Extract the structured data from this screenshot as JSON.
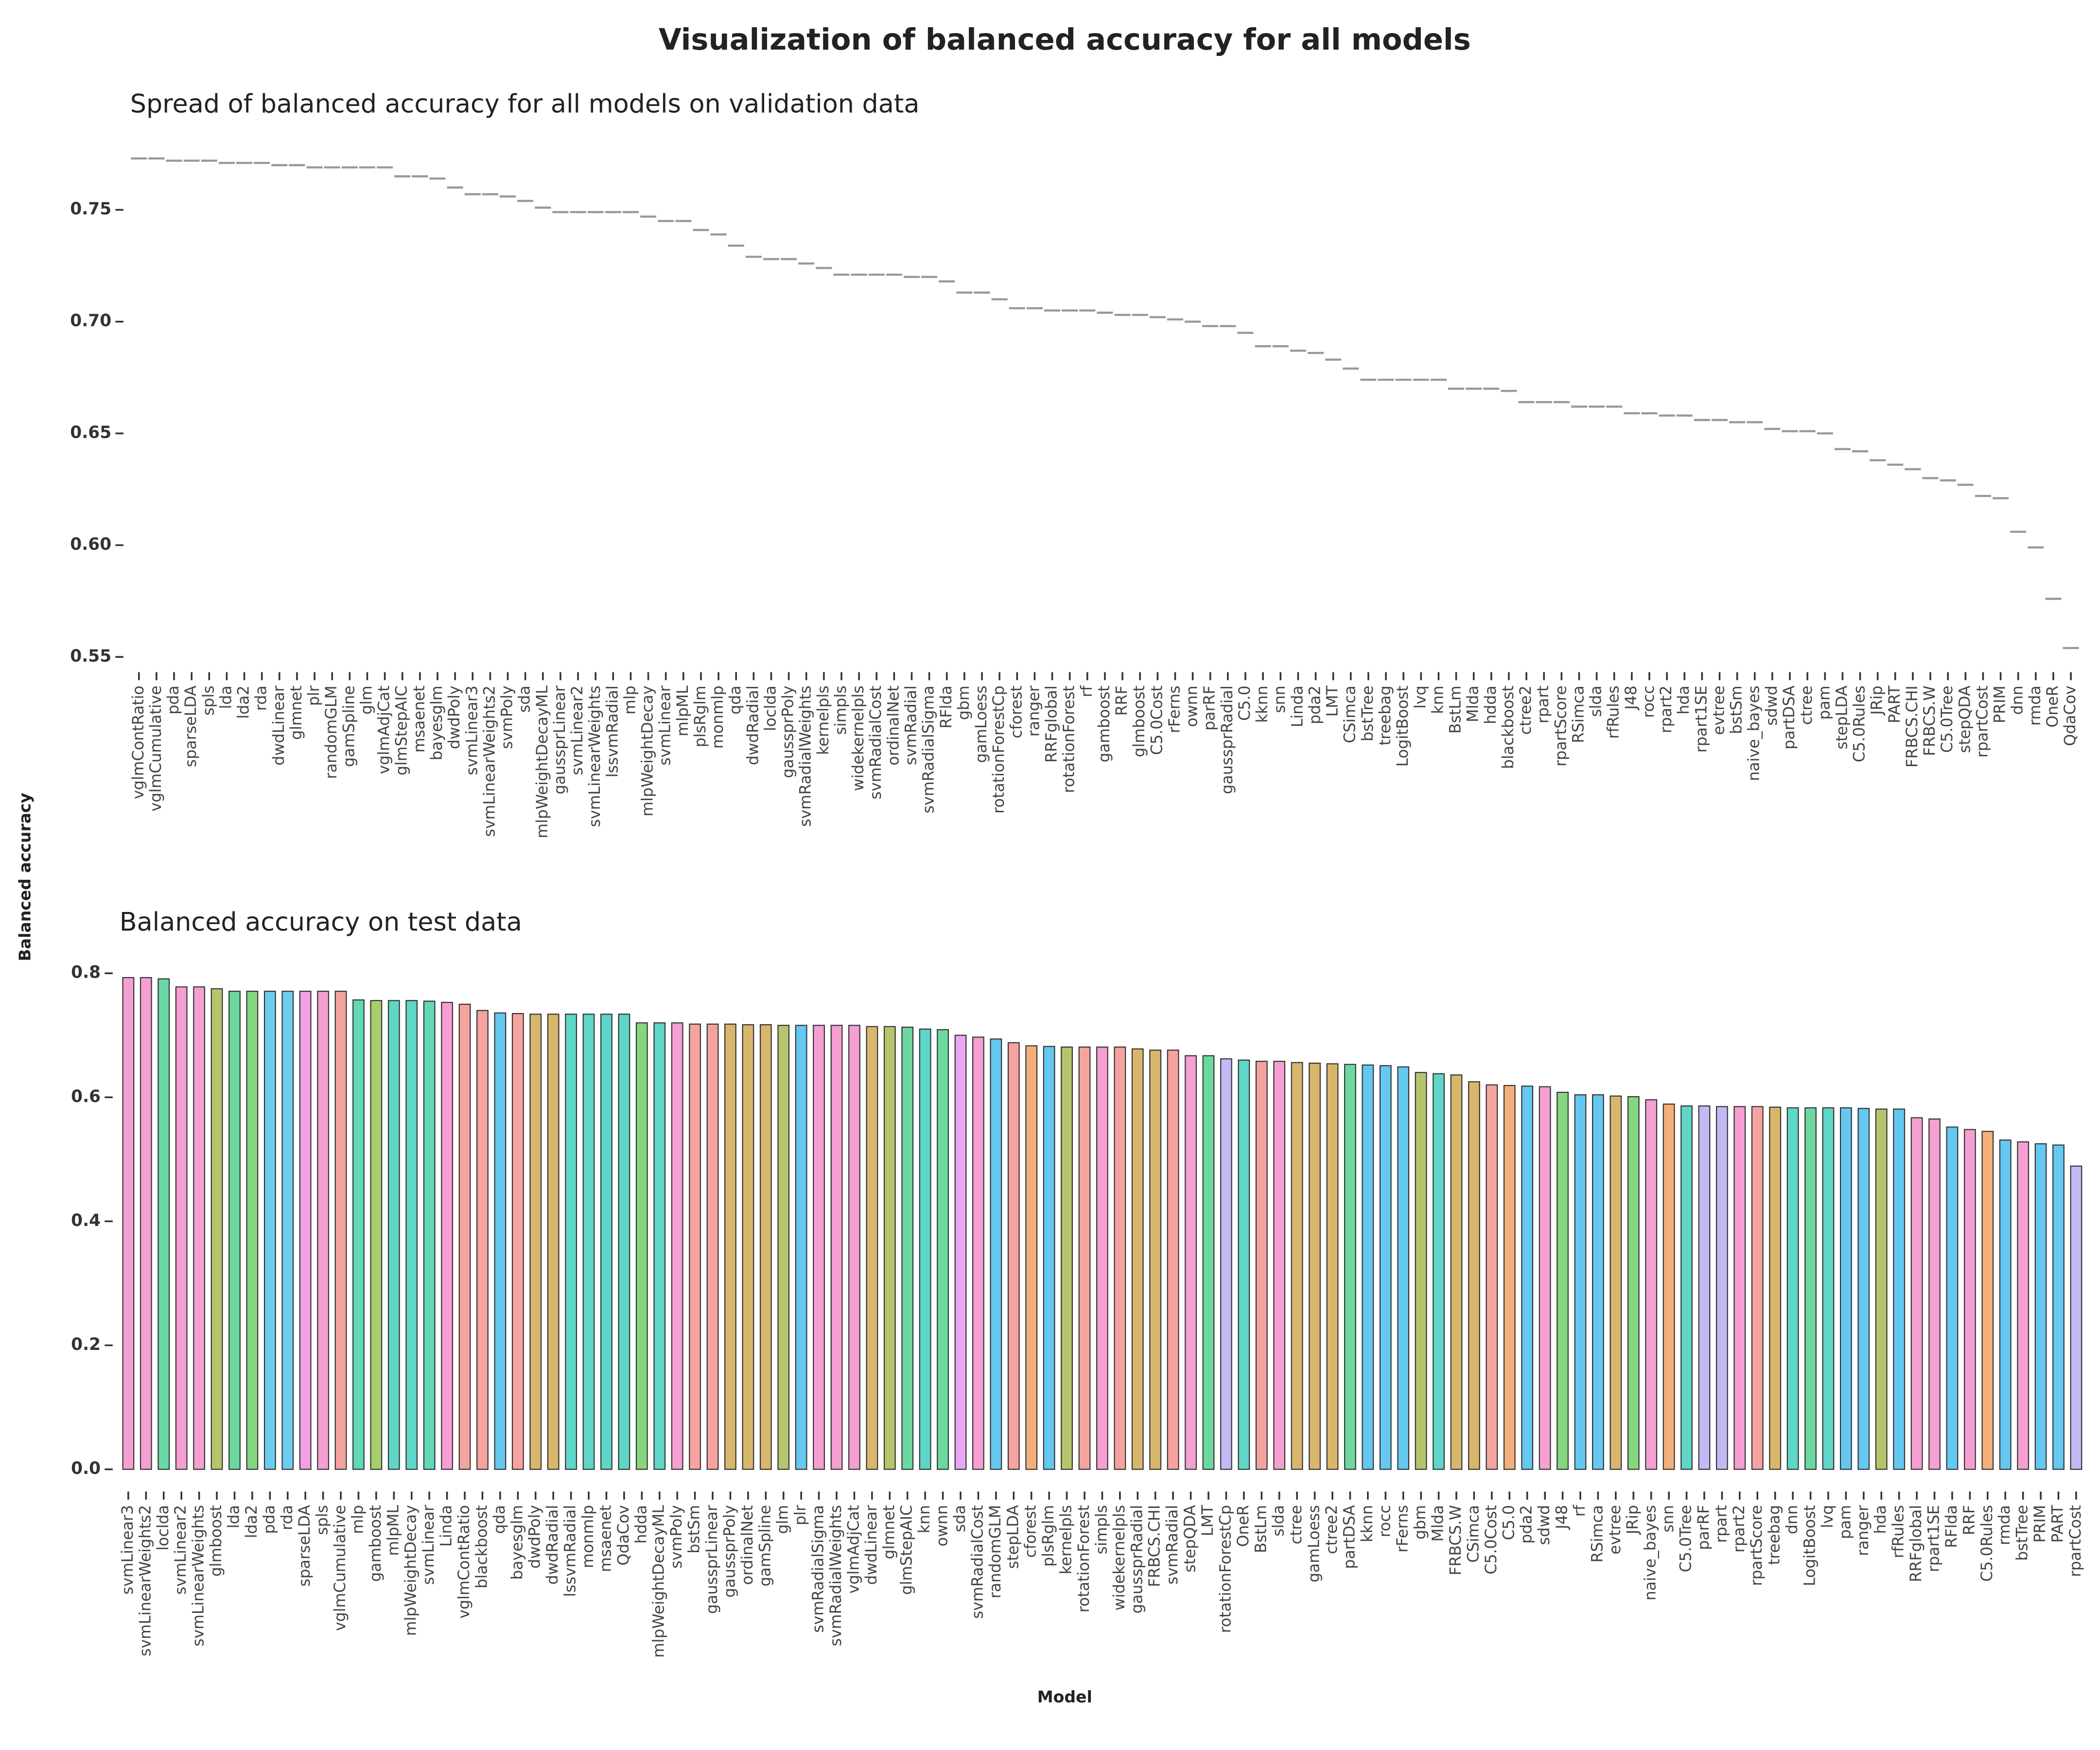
{
  "title": "Visualization of balanced accuracy for all models",
  "ylabel": "Balanced accuracy",
  "xlabel": "Model",
  "chart_data": [
    {
      "type": "scatter",
      "subtitle": "Spread of balanced accuracy for all models on validation data",
      "color": "#999999",
      "categories": [
        "vglmContRatio",
        "vglmCumulative",
        "pda",
        "sparseLDA",
        "spls",
        "lda",
        "lda2",
        "rda",
        "dwdLinear",
        "glmnet",
        "plr",
        "randomGLM",
        "gamSpline",
        "glm",
        "vglmAdjCat",
        "glmStepAIC",
        "msaenet",
        "bayesglm",
        "dwdPoly",
        "svmLinear3",
        "svmLinearWeights2",
        "svmPoly",
        "sda",
        "mlpWeightDecayML",
        "gaussprLinear",
        "svmLinear2",
        "svmLinearWeights",
        "lssvmRadial",
        "mlp",
        "mlpWeightDecay",
        "svmLinear",
        "mlpML",
        "plsRglm",
        "monmlp",
        "qda",
        "dwdRadial",
        "loclda",
        "gaussprPoly",
        "svmRadialWeights",
        "kernelpls",
        "simpls",
        "widekernelpls",
        "svmRadialCost",
        "ordinalNet",
        "svmRadial",
        "svmRadialSigma",
        "RFlda",
        "gbm",
        "gamLoess",
        "rotationForestCp",
        "cforest",
        "ranger",
        "RRFglobal",
        "rotationForest",
        "rf",
        "gamboost",
        "RRF",
        "glmboost",
        "C5.0Cost",
        "rFerns",
        "ownn",
        "parRF",
        "gaussprRadial",
        "C5.0",
        "kknn",
        "snn",
        "Linda",
        "pda2",
        "LMT",
        "CSimca",
        "bstTree",
        "treebag",
        "LogitBoost",
        "lvq",
        "knn",
        "BstLm",
        "Mlda",
        "hdda",
        "blackboost",
        "ctree2",
        "rpart",
        "rpartScore",
        "RSimca",
        "slda",
        "rfRules",
        "J48",
        "rocc",
        "rpart2",
        "hda",
        "rpart1SE",
        "evtree",
        "bstSm",
        "naive_bayes",
        "sdwd",
        "partDSA",
        "ctree",
        "pam",
        "stepLDA",
        "C5.0Rules",
        "JRip",
        "PART",
        "FRBCS.CHI",
        "FRBCS.W",
        "C5.0Tree",
        "stepQDA",
        "rpartCost",
        "PRIM",
        "dnn",
        "rmda",
        "OneR",
        "QdaCov"
      ],
      "values": [
        0.773,
        0.773,
        0.772,
        0.772,
        0.772,
        0.771,
        0.771,
        0.771,
        0.77,
        0.77,
        0.769,
        0.769,
        0.769,
        0.769,
        0.769,
        0.765,
        0.765,
        0.764,
        0.76,
        0.757,
        0.757,
        0.756,
        0.754,
        0.751,
        0.749,
        0.749,
        0.749,
        0.749,
        0.749,
        0.747,
        0.745,
        0.745,
        0.741,
        0.739,
        0.734,
        0.729,
        0.728,
        0.728,
        0.726,
        0.724,
        0.721,
        0.721,
        0.721,
        0.721,
        0.72,
        0.72,
        0.718,
        0.713,
        0.713,
        0.71,
        0.706,
        0.706,
        0.705,
        0.705,
        0.705,
        0.704,
        0.703,
        0.703,
        0.702,
        0.701,
        0.7,
        0.698,
        0.698,
        0.695,
        0.689,
        0.689,
        0.687,
        0.686,
        0.683,
        0.679,
        0.674,
        0.674,
        0.674,
        0.674,
        0.674,
        0.67,
        0.67,
        0.67,
        0.669,
        0.664,
        0.664,
        0.664,
        0.662,
        0.662,
        0.662,
        0.659,
        0.659,
        0.658,
        0.658,
        0.656,
        0.656,
        0.655,
        0.655,
        0.652,
        0.651,
        0.651,
        0.65,
        0.643,
        0.642,
        0.638,
        0.636,
        0.634,
        0.63,
        0.629,
        0.627,
        0.622,
        0.621,
        0.606,
        0.599,
        0.576,
        0.554
      ],
      "ylim": [
        0.545,
        0.775
      ],
      "yticks": [
        0.55,
        {
          "value": 0.6,
          "label": "0.60"
        },
        0.65,
        {
          "value": 0.7,
          "label": "0.70"
        },
        0.75
      ]
    },
    {
      "type": "bar",
      "subtitle": "Balanced accuracy on test data",
      "categories": [
        "svmLinear3",
        "svmLinearWeights2",
        "loclda",
        "svmLinear2",
        "svmLinearWeights",
        "glmboost",
        "lda",
        "lda2",
        "pda",
        "rda",
        "sparseLDA",
        "spls",
        "vglmCumulative",
        "mlp",
        "gamboost",
        "mlpML",
        "mlpWeightDecay",
        "svmLinear",
        "Linda",
        "vglmContRatio",
        "blackboost",
        "qda",
        "bayesglm",
        "dwdPoly",
        "dwdRadial",
        "lssvmRadial",
        "monmlp",
        "msaenet",
        "QdaCov",
        "hdda",
        "mlpWeightDecayML",
        "svmPoly",
        "bstSm",
        "gaussprLinear",
        "gaussprPoly",
        "ordinalNet",
        "gamSpline",
        "glm",
        "plr",
        "svmRadialSigma",
        "svmRadialWeights",
        "vglmAdjCat",
        "dwdLinear",
        "glmnet",
        "glmStepAIC",
        "knn",
        "ownn",
        "sda",
        "svmRadialCost",
        "randomGLM",
        "stepLDA",
        "cforest",
        "plsRglm",
        "kernelpls",
        "rotationForest",
        "simpls",
        "widekernelpls",
        "gaussprRadial",
        "FRBCS.CHI",
        "svmRadial",
        "stepQDA",
        "LMT",
        "rotationForestCp",
        "OneR",
        "BstLm",
        "slda",
        "ctree",
        "gamLoess",
        "ctree2",
        "partDSA",
        "kknn",
        "rocc",
        "rFerns",
        "gbm",
        "Mlda",
        "FRBCS.W",
        "CSimca",
        "C5.0Cost",
        "C5.0",
        "pda2",
        "sdwd",
        "J48",
        "rf",
        "RSimca",
        "evtree",
        "JRip",
        "naive_bayes",
        "snn",
        "C5.0Tree",
        "parRF",
        "rpart",
        "rpart2",
        "rpartScore",
        "treebag",
        "dnn",
        "LogitBoost",
        "lvq",
        "pam",
        "ranger",
        "hda",
        "rfRules",
        "RRFglobal",
        "rpart1SE",
        "RFlda",
        "RRF",
        "C5.0Rules",
        "rmda",
        "bstTree",
        "PRIM",
        "PART",
        "rpartCost"
      ],
      "values": [
        0.793,
        0.793,
        0.791,
        0.778,
        0.778,
        0.775,
        0.771,
        0.771,
        0.771,
        0.771,
        0.771,
        0.771,
        0.771,
        0.757,
        0.756,
        0.756,
        0.756,
        0.755,
        0.753,
        0.75,
        0.74,
        0.736,
        0.735,
        0.734,
        0.734,
        0.734,
        0.734,
        0.734,
        0.734,
        0.72,
        0.72,
        0.72,
        0.718,
        0.718,
        0.718,
        0.717,
        0.717,
        0.716,
        0.716,
        0.716,
        0.716,
        0.716,
        0.714,
        0.714,
        0.713,
        0.71,
        0.709,
        0.7,
        0.697,
        0.694,
        0.688,
        0.683,
        0.682,
        0.681,
        0.681,
        0.681,
        0.681,
        0.678,
        0.676,
        0.676,
        0.667,
        0.667,
        0.662,
        0.66,
        0.658,
        0.658,
        0.656,
        0.655,
        0.654,
        0.653,
        0.652,
        0.651,
        0.649,
        0.64,
        0.638,
        0.636,
        0.625,
        0.62,
        0.619,
        0.618,
        0.617,
        0.608,
        0.604,
        0.604,
        0.602,
        0.601,
        0.596,
        0.589,
        0.586,
        0.586,
        0.585,
        0.585,
        0.585,
        0.584,
        0.583,
        0.583,
        0.583,
        0.583,
        0.582,
        0.581,
        0.581,
        0.567,
        0.565,
        0.552,
        0.548,
        0.545,
        0.531,
        0.528,
        0.525,
        0.523,
        0.489
      ],
      "colors": [
        "#f59fd2",
        "#f59fd2",
        "#68d9a4",
        "#f59fd2",
        "#f59fd2",
        "#b6c46c",
        "#6cd8a0",
        "#86d680",
        "#6ccdf0",
        "#6ccdf0",
        "#f49fe4",
        "#f59fd2",
        "#f5a39f",
        "#62d8b6",
        "#a6cf6c",
        "#5ed6c8",
        "#5ed6c8",
        "#62d8b6",
        "#f59fd2",
        "#f5a39f",
        "#f5a39f",
        "#64c8f0",
        "#f5a39f",
        "#d8b66c",
        "#d8b66c",
        "#5ed6c8",
        "#5ed6c8",
        "#5ed6c8",
        "#5ed6c8",
        "#86d680",
        "#5ed6c8",
        "#f59fd2",
        "#f5a39f",
        "#f5a39f",
        "#d8b66c",
        "#d8b66c",
        "#d8b66c",
        "#b6c46c",
        "#64c8f0",
        "#f59fd2",
        "#f59fd2",
        "#f59fd2",
        "#d8b66c",
        "#b6c46c",
        "#6cd8a0",
        "#5ed6c8",
        "#6cd8a0",
        "#e7a7f2",
        "#f59fd2",
        "#64c8f0",
        "#f5a39f",
        "#f4b07a",
        "#64c8f0",
        "#b6c46c",
        "#f5a39f",
        "#f59fd2",
        "#f5a39f",
        "#d8b66c",
        "#d8b66c",
        "#f5a39f",
        "#f59fd2",
        "#6cd8a0",
        "#c4b8f5",
        "#5ed6c8",
        "#f5a39f",
        "#f59fd2",
        "#d8b66c",
        "#d8b66c",
        "#d8b66c",
        "#6cd8a0",
        "#64c8f0",
        "#64c8f0",
        "#64c8f0",
        "#b6c46c",
        "#5ed6c8",
        "#d8b66c",
        "#d8b66c",
        "#f5a39f",
        "#f4b07a",
        "#64c8f0",
        "#f59fd2",
        "#86d680",
        "#64c8f0",
        "#64c8f0",
        "#d8b66c",
        "#86d680",
        "#f59fd2",
        "#f4b07a",
        "#5ed6c8",
        "#c4b8f5",
        "#c4b8f5",
        "#f59fd2",
        "#f5a39f",
        "#d8b66c",
        "#5ed6c8",
        "#6cd8a0",
        "#5ed6c8",
        "#64c8f0",
        "#64c8f0",
        "#b6c46c",
        "#64c8f0",
        "#f59fd2",
        "#f59fd2",
        "#64c8f0",
        "#f59fd2",
        "#f4b07a",
        "#64c8f0",
        "#f59fd2",
        "#64c8f0",
        "#64c8f0",
        "#c4b8f5"
      ],
      "ylim": [
        -0.01,
        0.83
      ],
      "yticks": [
        {
          "value": 0,
          "label": "0.0"
        },
        0.2,
        0.4,
        0.6,
        0.8
      ]
    }
  ]
}
